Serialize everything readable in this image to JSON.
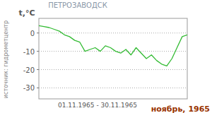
{
  "chart_data": {
    "type": "line",
    "title": "ПЕТРОЗАВОДСК",
    "y_label": "t,°C",
    "x_label": "01.11.1965 - 30.11.1965",
    "source": "источник: гидрометцентр",
    "caption": "ноябрь, 1965",
    "x": [
      1,
      2,
      3,
      4,
      5,
      6,
      7,
      8,
      9,
      10,
      11,
      12,
      13,
      14,
      15,
      16,
      17,
      18,
      19,
      20,
      21,
      22,
      23,
      24,
      25,
      26,
      27,
      28,
      29,
      30
    ],
    "series": [
      {
        "name": "t",
        "color": "#33bb33",
        "values": [
          4,
          3.5,
          3,
          2,
          1,
          -1,
          -2,
          -4,
          -5,
          -10,
          -9,
          -8,
          -10,
          -7,
          -8,
          -10,
          -11,
          -9,
          -12,
          -8,
          -11,
          -14,
          -12,
          -15,
          -17,
          -18,
          -14,
          -8,
          -2,
          -1
        ]
      }
    ],
    "xlim": [
      1,
      30
    ],
    "ylim": [
      -36,
      8
    ],
    "yticks": [
      -30,
      -20,
      -10,
      0
    ],
    "grid": true,
    "tick_labels": "y"
  }
}
